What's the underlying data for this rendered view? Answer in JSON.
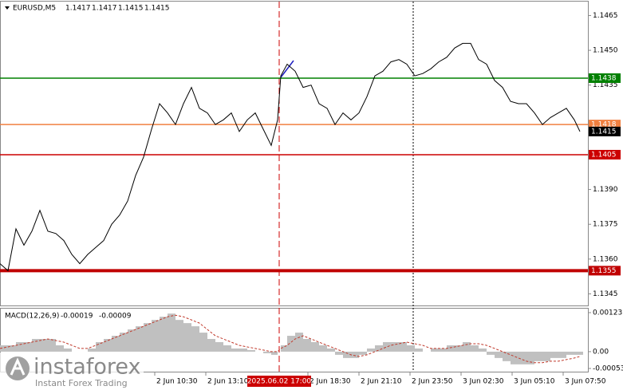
{
  "chart_data": [
    {
      "type": "line",
      "title": "EURUSD,M5",
      "quote": [
        1.1417,
        1.1417,
        1.1415,
        1.1415
      ],
      "color": "#000000",
      "x": [
        0,
        5,
        10,
        15,
        20,
        25,
        30,
        35,
        40,
        45,
        50,
        55,
        60,
        65,
        70,
        75,
        80,
        85,
        90,
        95,
        100,
        105,
        110,
        115,
        120,
        125,
        130,
        135,
        140,
        145,
        150,
        155,
        160,
        165,
        170,
        174,
        176,
        180,
        185,
        190,
        195,
        200,
        205,
        210,
        215,
        220,
        225,
        230,
        235,
        240,
        245,
        250,
        255,
        260,
        265,
        270,
        275,
        280,
        285,
        290,
        295,
        300,
        305,
        310,
        315,
        320,
        325,
        330,
        335,
        340,
        345,
        350,
        355,
        360,
        363.5
      ],
      "values": [
        1.1358,
        1.1355,
        1.1373,
        1.1366,
        1.1372,
        1.1381,
        1.1372,
        1.1371,
        1.1368,
        1.1362,
        1.1358,
        1.1362,
        1.1365,
        1.1368,
        1.1375,
        1.1379,
        1.1385,
        1.1396,
        1.1404,
        1.1416,
        1.1427,
        1.1423,
        1.1418,
        1.1427,
        1.1434,
        1.1425,
        1.1423,
        1.1418,
        1.142,
        1.1423,
        1.1415,
        1.142,
        1.1423,
        1.1416,
        1.1409,
        1.142,
        1.1439,
        1.1444,
        1.1441,
        1.1434,
        1.1435,
        1.1427,
        1.1425,
        1.1418,
        1.1423,
        1.142,
        1.1423,
        1.143,
        1.1439,
        1.1441,
        1.1445,
        1.1446,
        1.1444,
        1.1439,
        1.144,
        1.1442,
        1.1445,
        1.1447,
        1.1451,
        1.1453,
        1.1453,
        1.1446,
        1.1444,
        1.1437,
        1.1434,
        1.1428,
        1.1427,
        1.1427,
        1.1423,
        1.1418,
        1.1421,
        1.1423,
        1.1425,
        1.142,
        1.1415
      ],
      "xlim": [
        0,
        368.5
      ],
      "ylim": [
        1.134,
        1.1471
      ],
      "xticks": [
        {
          "value": 97,
          "label": "2 Jun 10:30"
        },
        {
          "value": 129,
          "label": "2 Jun 13:10"
        },
        {
          "value": 193,
          "label": "2 Jun 18:30"
        },
        {
          "value": 225,
          "label": "2 Jun 21:10"
        },
        {
          "value": 257,
          "label": "2 Jun 23:50"
        },
        {
          "value": 289,
          "label": "3 Jun 02:30"
        },
        {
          "value": 321,
          "label": "3 Jun 05:10"
        },
        {
          "value": 353,
          "label": "3 Jun 07:50"
        }
      ],
      "crosshair": {
        "value": 175,
        "label": "2025.06.02 17:00"
      },
      "yticks": [
        1.1465,
        {
          "value": 1.145,
          "label": "1.1450"
        },
        1.1435,
        {
          "value": 1.139,
          "label": "1.1390"
        },
        1.1375,
        {
          "value": 1.136,
          "label": "1.1360"
        },
        1.1345
      ],
      "levels": [
        {
          "value": 1.1438,
          "color": "#008000"
        },
        {
          "value": 1.1418,
          "color": "#f08040"
        },
        {
          "value": 1.1415,
          "color": "#000000"
        },
        {
          "value": 1.1405,
          "color": "#cc0000"
        },
        {
          "value": 1.1355,
          "color": "#c00000"
        }
      ]
    },
    {
      "type": "macd",
      "title": "MACD(12,26,9)",
      "current": [
        -0.00019,
        -9e-05
      ],
      "x": [
        0,
        5,
        10,
        15,
        20,
        25,
        30,
        35,
        40,
        45,
        50,
        55,
        60,
        65,
        70,
        75,
        80,
        85,
        90,
        95,
        100,
        105,
        110,
        115,
        120,
        125,
        130,
        135,
        140,
        145,
        150,
        155,
        160,
        165,
        170,
        174,
        176,
        180,
        185,
        190,
        195,
        200,
        205,
        210,
        215,
        220,
        225,
        230,
        235,
        240,
        245,
        250,
        255,
        260,
        265,
        270,
        275,
        280,
        285,
        290,
        295,
        300,
        305,
        310,
        315,
        320,
        325,
        330,
        335,
        340,
        345,
        350,
        355,
        360,
        363.5
      ],
      "series": [
        {
          "color": "#c0c0c0",
          "values": [
            0.0002,
            0.0002,
            0.0003,
            0.0003,
            0.0004,
            0.0004,
            0.0004,
            0.0002,
            0.0001,
            0,
            0,
            0.0001,
            0.0003,
            0.0004,
            0.0005,
            0.0006,
            0.0007,
            0.0008,
            0.0009,
            0.001,
            0.0011,
            0.0012,
            0.001,
            0.0009,
            0.0008,
            0.0006,
            0.0004,
            0.0003,
            0.0002,
            0.0001,
            0.0001,
            5e-05,
            0,
            -5e-05,
            -0.0001,
            0,
            0.0002,
            0.0005,
            0.0006,
            0.0004,
            0.0003,
            0.0002,
            0.0001,
            -0.0001,
            -0.0002,
            -0.0002,
            -0.0001,
            0.0001,
            0.0002,
            0.0003,
            0.0003,
            0.0003,
            0.0002,
            0.0001,
            0,
            0.0001,
            0.0001,
            0.0002,
            0.0002,
            0.0003,
            0.0002,
            0.0001,
            -0.0001,
            -0.0002,
            -0.0003,
            -0.0004,
            -0.0004,
            -0.0004,
            -0.0003,
            -0.0003,
            -0.0002,
            -0.0002,
            -0.0001,
            -0.0001,
            -0.0001
          ]
        },
        {
          "color": "#c0392b",
          "values": [
            0.0001,
            0.00015,
            0.0002,
            0.00025,
            0.0003,
            0.00035,
            0.0004,
            0.00035,
            0.0003,
            0.0002,
            0.0001,
            0.0001,
            0.0002,
            0.0003,
            0.0004,
            0.0005,
            0.0006,
            0.0007,
            0.0008,
            0.0009,
            0.001,
            0.0011,
            0.00115,
            0.0011,
            0.001,
            0.0009,
            0.0007,
            0.0005,
            0.0004,
            0.0003,
            0.0002,
            0.00015,
            0.0001,
            5e-05,
            0,
            0,
            0.0001,
            0.0002,
            0.0004,
            0.0005,
            0.0004,
            0.0003,
            0.0002,
            0.0001,
            0,
            -0.0001,
            -0.00015,
            -0.0001,
            0,
            0.0001,
            0.0002,
            0.00025,
            0.0003,
            0.00025,
            0.0002,
            0.0001,
            0.0001,
            0.0001,
            0.00015,
            0.0002,
            0.00025,
            0.00025,
            0.0002,
            0.0001,
            0,
            -0.0001,
            -0.0002,
            -0.0003,
            -0.00035,
            -0.00035,
            -0.0003,
            -0.0003,
            -0.00025,
            -0.0002,
            -0.00015
          ]
        }
      ],
      "xlim": [
        0,
        368.5
      ],
      "ylim": [
        -0.00053,
        0.00123
      ],
      "yticks": [
        0.00123,
        {
          "value": 0,
          "label": "0.00"
        },
        -0.00053
      ]
    }
  ],
  "watermark": {
    "brand": "instaforex",
    "tagline": "Instant Forex Trading"
  }
}
